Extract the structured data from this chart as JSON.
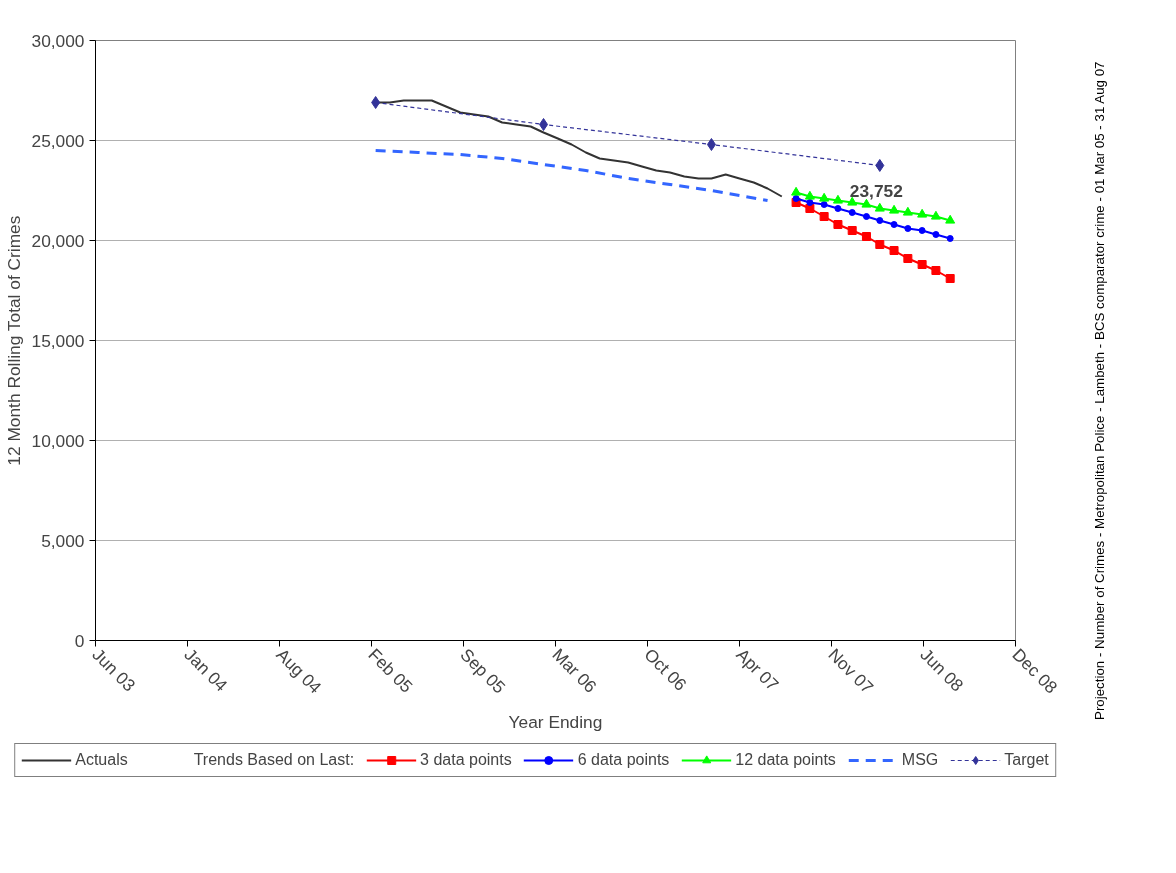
{
  "chart_data": {
    "type": "line",
    "xlabel": "Year Ending",
    "ylabel": "12 Month Rolling Total of Crimes",
    "annotations": [
      "Projection - Number of Crimes - Metropolitan Police - Lambeth - BCS comparator crime - 01 Mar 05 - 31 Aug 07",
      {
        "text": "23,752",
        "x": "2008-02-29",
        "y": 23752
      }
    ],
    "legend_title": "Trends Based on Last:",
    "xlim": [
      "2003-06-30",
      "2008-12-20"
    ],
    "xticks": [
      {
        "value": "2003-06-30",
        "label": "Jun 03"
      },
      {
        "value": "2004-01-16",
        "label": "Jan 04"
      },
      {
        "value": "2004-08-03",
        "label": "Aug 04"
      },
      {
        "value": "2005-02-19",
        "label": "Feb 05"
      },
      {
        "value": "2005-09-07",
        "label": "Sep 05"
      },
      {
        "value": "2006-03-26",
        "label": "Mar 06"
      },
      {
        "value": "2006-10-12",
        "label": "Oct 06"
      },
      {
        "value": "2007-04-30",
        "label": "Apr 07"
      },
      {
        "value": "2007-11-16",
        "label": "Nov 07"
      },
      {
        "value": "2008-06-03",
        "label": "Jun 08"
      },
      {
        "value": "2008-12-20",
        "label": "Dec 08"
      }
    ],
    "ylim": [
      0,
      30000
    ],
    "yticks": [
      {
        "value": 0,
        "label": "0"
      },
      {
        "value": 5000,
        "label": "5,000"
      },
      {
        "value": 10000,
        "label": "10,000"
      },
      {
        "value": 15000,
        "label": "15,000"
      },
      {
        "value": 20000,
        "label": "20,000"
      },
      {
        "value": 25000,
        "label": "25,000"
      },
      {
        "value": 30000,
        "label": "30,000"
      }
    ],
    "grid": "y",
    "legend": "bottom",
    "series": [
      {
        "name": "Actuals",
        "color": "#333333",
        "marker": "none",
        "line_style": "solid",
        "x": [
          "2005-02-28",
          "2005-03-31",
          "2005-04-30",
          "2005-05-31",
          "2005-06-30",
          "2005-07-31",
          "2005-08-31",
          "2005-09-30",
          "2005-10-31",
          "2005-11-30",
          "2005-12-31",
          "2006-01-31",
          "2006-02-28",
          "2006-03-31",
          "2006-04-30",
          "2006-05-31",
          "2006-06-30",
          "2006-07-31",
          "2006-08-31",
          "2006-09-30",
          "2006-10-31",
          "2006-11-30",
          "2006-12-31",
          "2007-01-31",
          "2007-02-28",
          "2007-03-31",
          "2007-04-30",
          "2007-05-31",
          "2007-06-30",
          "2007-07-31"
        ],
        "values": [
          26900,
          26900,
          27000,
          27000,
          27000,
          26700,
          26400,
          26300,
          26200,
          25900,
          25800,
          25700,
          25400,
          25100,
          24800,
          24400,
          24100,
          24000,
          23900,
          23700,
          23500,
          23400,
          23200,
          23100,
          23100,
          23300,
          23100,
          22900,
          22600,
          22200
        ]
      },
      {
        "name": "3 data points",
        "color": "#ff0000",
        "marker": "square",
        "line_style": "solid",
        "x": [
          "2007-08-31",
          "2007-09-30",
          "2007-10-31",
          "2007-11-30",
          "2007-12-31",
          "2008-01-31",
          "2008-02-29",
          "2008-03-31",
          "2008-04-30",
          "2008-05-31",
          "2008-06-30",
          "2008-07-31"
        ],
        "values": [
          21900,
          21600,
          21200,
          20800,
          20500,
          20200,
          19800,
          19500,
          19100,
          18800,
          18500,
          18100
        ]
      },
      {
        "name": "6 data points",
        "color": "#0000ff",
        "marker": "circle",
        "line_style": "solid",
        "x": [
          "2007-08-31",
          "2007-09-30",
          "2007-10-31",
          "2007-11-30",
          "2007-12-31",
          "2008-01-31",
          "2008-02-29",
          "2008-03-31",
          "2008-04-30",
          "2008-05-31",
          "2008-06-30",
          "2008-07-31"
        ],
        "values": [
          22100,
          21900,
          21800,
          21600,
          21400,
          21200,
          21000,
          20800,
          20600,
          20500,
          20300,
          20100
        ]
      },
      {
        "name": "12 data points",
        "color": "#00ff00",
        "marker": "triangle",
        "line_style": "solid",
        "x": [
          "2007-08-31",
          "2007-09-30",
          "2007-10-31",
          "2007-11-30",
          "2007-12-31",
          "2008-01-31",
          "2008-02-29",
          "2008-03-31",
          "2008-04-30",
          "2008-05-31",
          "2008-06-30",
          "2008-07-31"
        ],
        "values": [
          22400,
          22200,
          22100,
          22000,
          21900,
          21800,
          21600,
          21500,
          21400,
          21300,
          21200,
          21000
        ]
      },
      {
        "name": "MSG",
        "color": "#3366ff",
        "marker": "none",
        "line_style": "dashed",
        "x": [
          "2005-02-28",
          "2005-05-31",
          "2005-08-31",
          "2005-11-30",
          "2006-02-28",
          "2006-05-31",
          "2006-08-31",
          "2006-11-30",
          "2007-02-28",
          "2007-06-30"
        ],
        "values": [
          24500,
          24400,
          24300,
          24100,
          23800,
          23500,
          23100,
          22800,
          22500,
          22000
        ]
      },
      {
        "name": "Target",
        "color": "#333399",
        "marker": "diamond",
        "line_style": "dotted",
        "x": [
          "2005-02-28",
          "2006-02-28",
          "2007-02-28",
          "2008-02-29"
        ],
        "values": [
          26900,
          25800,
          24800,
          23752
        ]
      }
    ]
  }
}
